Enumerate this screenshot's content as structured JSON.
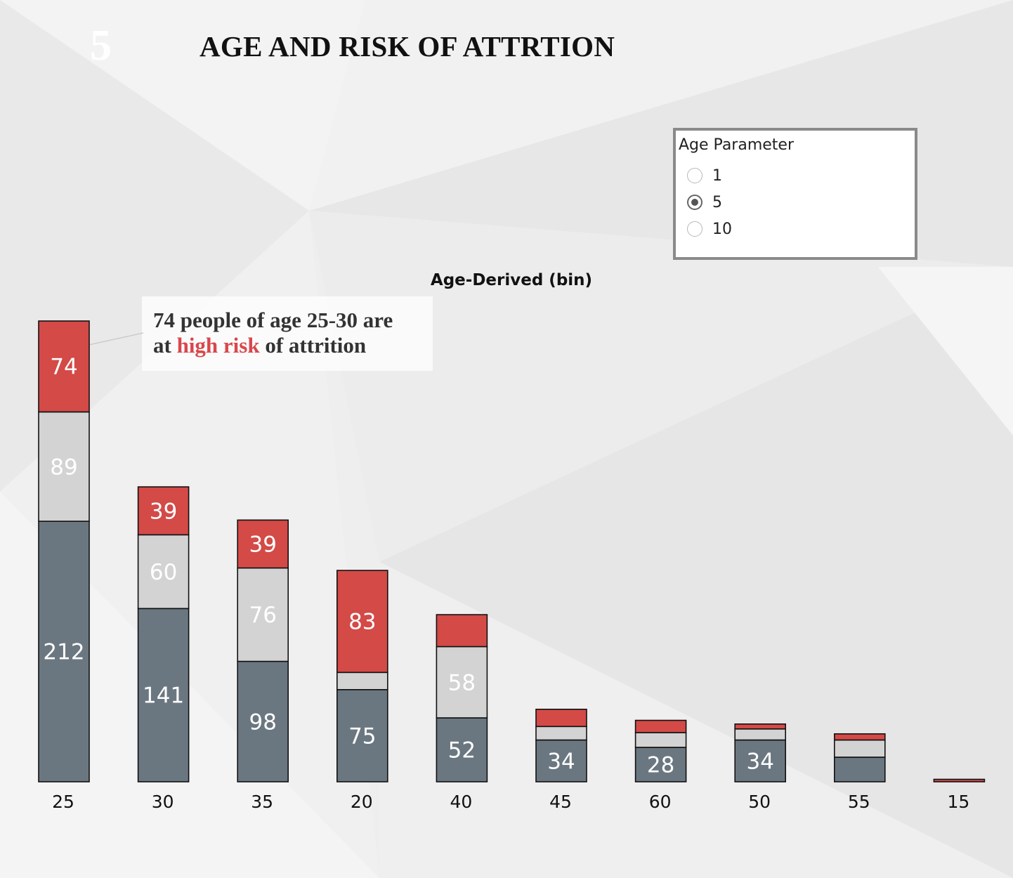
{
  "page_number": "5",
  "title": "AGE AND RISK OF ATTRTION",
  "age_parameter": {
    "label": "Age Parameter",
    "options": [
      "1",
      "5",
      "10"
    ],
    "selected": "5"
  },
  "annotation": {
    "line1": "74 people of age 25-30 are",
    "line2_prefix": "at ",
    "line2_highlight": "high risk",
    "line2_suffix": " of attrition",
    "highlight_color": "#d9474b"
  },
  "chart_data": {
    "type": "bar",
    "stacked": true,
    "title": "Age-Derived (bin)",
    "xlabel": "Age-Derived (bin)",
    "ylabel": "",
    "categories": [
      "25",
      "30",
      "35",
      "20",
      "40",
      "45",
      "60",
      "50",
      "55",
      "15"
    ],
    "series": [
      {
        "color": "#6b7780",
        "values": [
          212,
          141,
          98,
          75,
          52,
          34,
          28,
          34,
          20,
          0
        ],
        "labels": [
          "212",
          "141",
          "98",
          "75",
          "52",
          "34",
          "28",
          "34",
          "",
          ""
        ]
      },
      {
        "color": "#d3d3d3",
        "values": [
          89,
          60,
          76,
          14,
          58,
          11,
          12,
          9,
          14,
          0
        ],
        "labels": [
          "89",
          "60",
          "76",
          "",
          "58",
          "",
          "",
          "",
          "",
          ""
        ]
      },
      {
        "color": "#d34a47",
        "values": [
          74,
          39,
          39,
          83,
          26,
          14,
          10,
          4,
          5,
          2
        ],
        "labels": [
          "74",
          "39",
          "39",
          "83",
          "",
          "",
          "",
          "",
          "",
          ""
        ]
      }
    ],
    "ylim": [
      0,
      375
    ],
    "grid": false,
    "legend": "none"
  }
}
